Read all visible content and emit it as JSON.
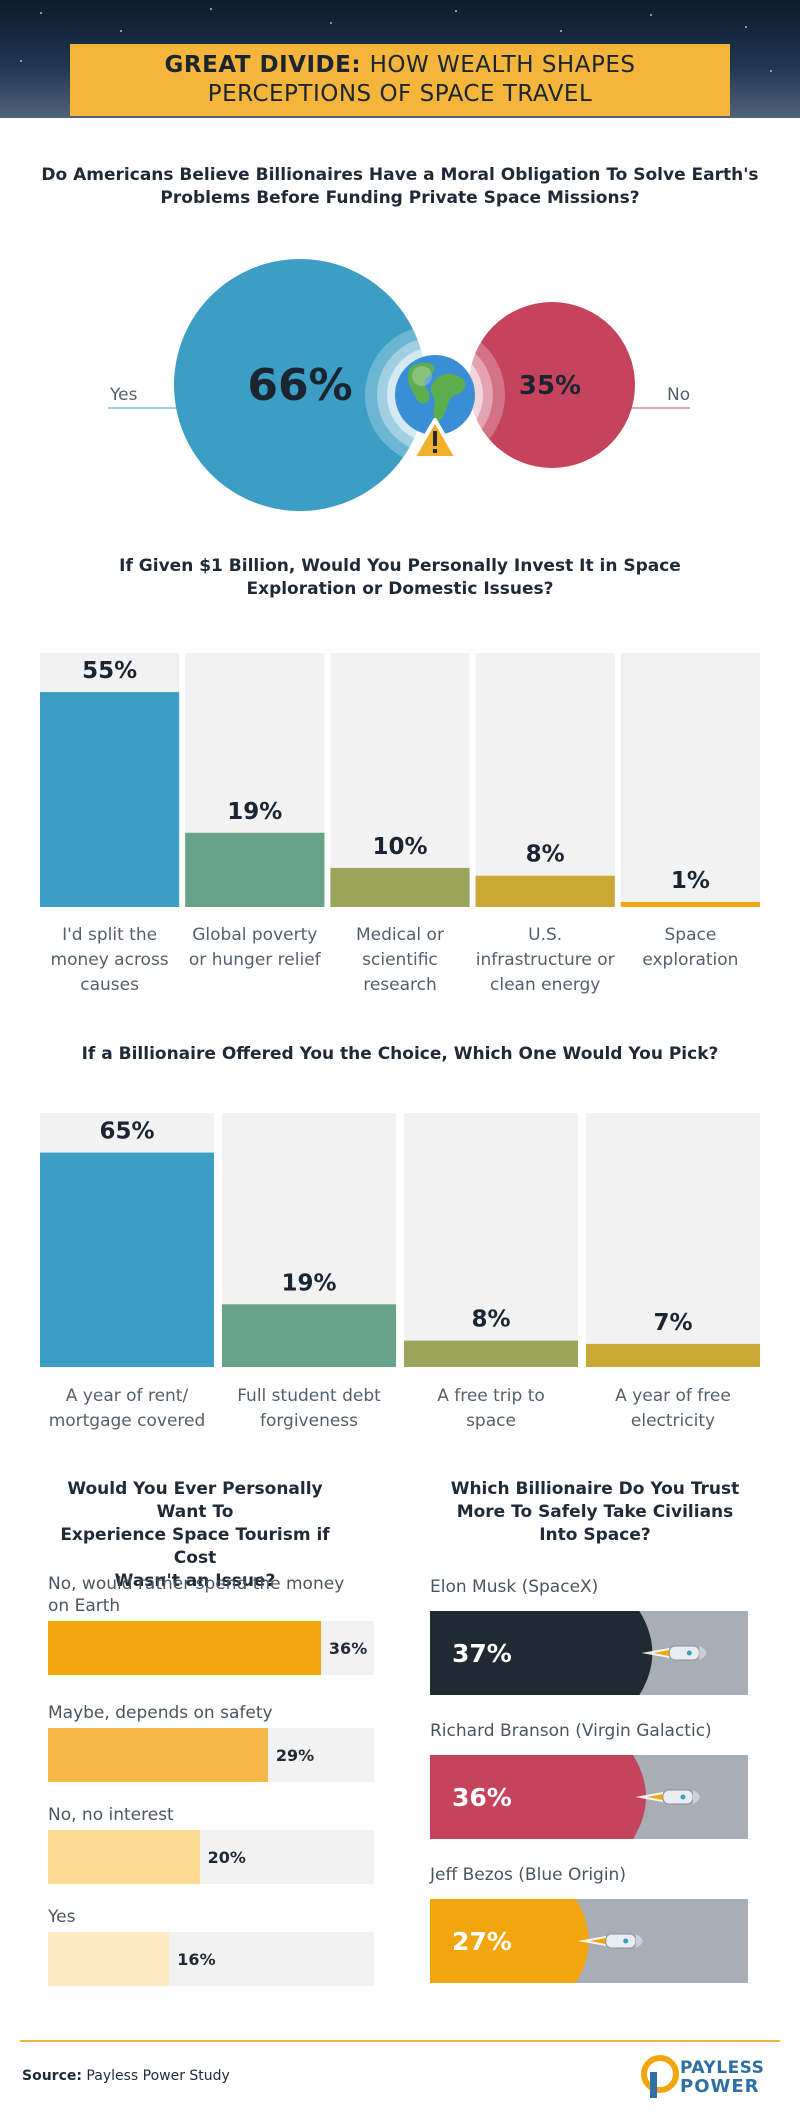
{
  "header": {
    "title_bold": "GREAT DIVIDE:",
    "title_rest": "HOW WEALTH SHAPES",
    "title_line2": "PERCEPTIONS OF SPACE TRAVEL"
  },
  "colors": {
    "blue": "#3c9ec4",
    "teal": "#67a28b",
    "olive": "#9ba65a",
    "mustard": "#c9a836",
    "orange": "#f2a50c",
    "crimson": "#c6435e",
    "dark": "#1f2a33",
    "track": "#f2f2f2"
  },
  "icons": [
    "globe-icon",
    "warning-icon",
    "rocket-icon",
    "spaceplane-icon",
    "capsule-icon",
    "payless-power-logo"
  ],
  "chart_data": [
    {
      "type": "pie",
      "title": "Do Americans Believe Billionaires Have a Moral Obligation To Solve Earth's Problems Before Funding Private Space Missions?",
      "categories": [
        "Yes",
        "No"
      ],
      "values": [
        66,
        35
      ],
      "labels": [
        "66%",
        "35%"
      ]
    },
    {
      "type": "bar",
      "title": "If Given $1 Billion, Would You Personally Invest It in Space Exploration or Domestic Issues?",
      "categories": [
        "I'd split the money across causes",
        "Global poverty or hunger relief",
        "Medical or scientific research",
        "U.S. infrastructure or clean energy",
        "Space exploration"
      ],
      "category_lines": [
        [
          "I'd split the",
          "money across",
          "causes"
        ],
        [
          "Global poverty",
          "or hunger relief"
        ],
        [
          "Medical or",
          "scientific",
          "research"
        ],
        [
          "U.S.",
          "infrastructure or",
          "clean energy"
        ],
        [
          "Space",
          "exploration"
        ]
      ],
      "values": [
        55,
        19,
        10,
        8,
        1
      ],
      "labels": [
        "55%",
        "19%",
        "10%",
        "8%",
        "1%"
      ],
      "ylim": [
        0,
        65
      ]
    },
    {
      "type": "bar",
      "title": "If a Billionaire Offered You the Choice, Which One Would You Pick?",
      "categories": [
        "A year of rent/ mortgage covered",
        "Full student debt forgiveness",
        "A free trip to space",
        "A year of free electricity"
      ],
      "category_lines": [
        [
          "A year of rent/",
          "mortgage covered"
        ],
        [
          "Full student debt",
          "forgiveness"
        ],
        [
          "A free trip to",
          "space"
        ],
        [
          "A year of free",
          "electricity"
        ]
      ],
      "values": [
        65,
        19,
        8,
        7
      ],
      "labels": [
        "65%",
        "19%",
        "8%",
        "7%"
      ],
      "ylim": [
        0,
        77
      ]
    },
    {
      "type": "bar",
      "orientation": "horizontal",
      "title": "Would You Ever Personally Want To Experience Space Tourism if Cost Wasn't an Issue?",
      "title_lines": [
        "Would You Ever Personally Want To",
        "Experience Space Tourism if Cost",
        "Wasn't an Issue?"
      ],
      "categories": [
        "No, would rather spend the money on Earth",
        "Maybe, depends on safety",
        "No, no interest",
        "Yes"
      ],
      "category_lines": [
        [
          "No, would rather spend the money",
          "on Earth"
        ],
        [
          "Maybe, depends on safety"
        ],
        [
          "No, no interest"
        ],
        [
          "Yes"
        ]
      ],
      "values": [
        36,
        29,
        20,
        16
      ],
      "labels": [
        "36%",
        "29%",
        "20%",
        "16%"
      ],
      "xlim": [
        0,
        43
      ]
    },
    {
      "type": "bar",
      "orientation": "horizontal",
      "title": "Which Billionaire Do You Trust More To Safely Take Civilians Into Space?",
      "title_lines": [
        "Which Billionaire Do You Trust",
        "More To Safely Take Civilians",
        "Into Space?"
      ],
      "categories": [
        "Elon Musk  (SpaceX)",
        "Richard Branson (Virgin Galactic)",
        "Jeff Bezos (Blue Origin)"
      ],
      "values": [
        37,
        36,
        27
      ],
      "labels": [
        "37%",
        "36%",
        "27%"
      ],
      "xlim": [
        0,
        50
      ]
    }
  ],
  "footer": {
    "source_label": "Source:",
    "source_text": "Payless Power Study",
    "logo_line1": "PAYLESS",
    "logo_line2": "POWER"
  }
}
